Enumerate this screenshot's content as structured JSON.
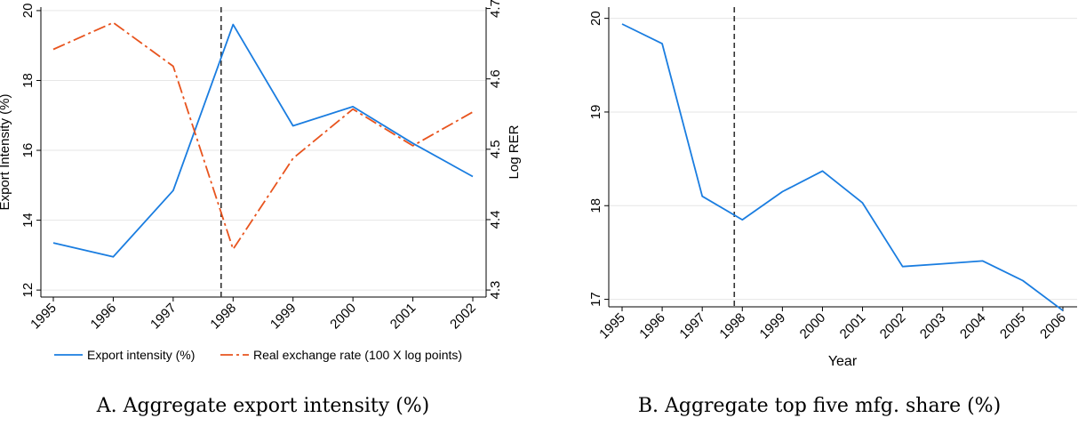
{
  "chart_data": [
    {
      "type": "line",
      "caption": "A. Aggregate export intensity (%)",
      "x": [
        "1995",
        "1996",
        "1997",
        "1998",
        "1999",
        "2000",
        "2001",
        "2002"
      ],
      "ylabel": "Export Intensity (%)",
      "ylabel_right": "Log RER",
      "ylim": [
        11.8,
        20.1
      ],
      "yticks": [
        "12",
        "14",
        "16",
        "18",
        "20"
      ],
      "ylim_right": [
        4.29,
        4.702
      ],
      "yticks_right": [
        "4.3",
        "4.4",
        "4.5",
        "4.6",
        "4.7"
      ],
      "vline_at": 1997.8,
      "grid": true,
      "legend": "bottom",
      "series": [
        {
          "name": "Export intensity (%)",
          "axis": "left",
          "color": "#1a7de0",
          "dash": "solid",
          "values": [
            13.35,
            12.95,
            14.85,
            19.6,
            16.7,
            17.25,
            16.2,
            15.25
          ]
        },
        {
          "name": "Real exchange rate (100 X log points)",
          "axis": "right",
          "color": "#e8541e",
          "dash": "longdash",
          "values": [
            4.642,
            4.68,
            4.618,
            4.358,
            4.487,
            4.557,
            4.505,
            4.553
          ]
        }
      ]
    },
    {
      "type": "line",
      "caption": "B. Aggregate top five mfg. share (%)",
      "x": [
        "1995",
        "1996",
        "1997",
        "1998",
        "1999",
        "2000",
        "2001",
        "2002",
        "2003",
        "2004",
        "2005",
        "2006"
      ],
      "xlabel": "Year",
      "ylim": [
        16.92,
        20.12
      ],
      "yticks": [
        "17",
        "18",
        "19",
        "20"
      ],
      "vline_at": 1997.8,
      "grid": true,
      "series": [
        {
          "color": "#1a7de0",
          "values": [
            19.94,
            19.73,
            18.1,
            17.85,
            18.15,
            18.37,
            18.03,
            17.35,
            17.38,
            17.41,
            17.2,
            16.88
          ]
        }
      ]
    }
  ]
}
